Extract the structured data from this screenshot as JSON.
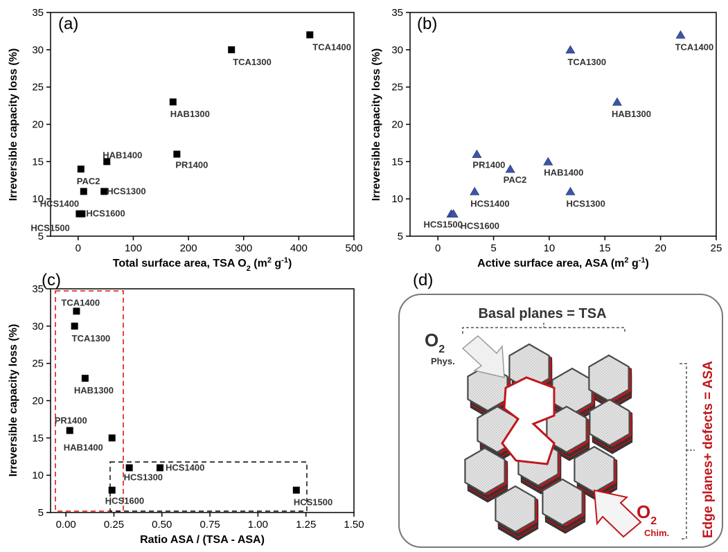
{
  "chart_data": [
    {
      "panel": "(a)",
      "type": "scatter",
      "xlabel": "Total surface area, TSA O",
      "xlabel_sub": "2",
      "xlabel_unit_pre": " (m",
      "xlabel_sup": "2",
      "xlabel_unit_post": " g",
      "xlabel_sup2": "-1",
      "xlabel_close": ")",
      "ylabel": "Irreversible capacity loss (%)",
      "xlim": [
        -50,
        500
      ],
      "ylim": [
        5,
        35
      ],
      "xticks": [
        0,
        100,
        200,
        300,
        400,
        500
      ],
      "yticks": [
        5,
        10,
        15,
        20,
        25,
        30,
        35
      ],
      "marker": "square",
      "color": "#000000",
      "points": [
        {
          "label": "TCA1400",
          "x": 420,
          "y": 32
        },
        {
          "label": "TCA1300",
          "x": 278,
          "y": 30
        },
        {
          "label": "HAB1300",
          "x": 172,
          "y": 23
        },
        {
          "label": "PR1400",
          "x": 179,
          "y": 16
        },
        {
          "label": "HAB1400",
          "x": 52,
          "y": 15
        },
        {
          "label": "PAC2",
          "x": 5,
          "y": 14
        },
        {
          "label": "HCS1300",
          "x": 47,
          "y": 11
        },
        {
          "label": "HCS1400",
          "x": 10,
          "y": 11
        },
        {
          "label": "HCS1600",
          "x": 7,
          "y": 8
        },
        {
          "label": "HCS1500",
          "x": 2,
          "y": 8
        }
      ]
    },
    {
      "panel": "(b)",
      "type": "scatter",
      "xlabel": "Active surface area, ASA (m",
      "xlabel_sup": "2",
      "xlabel_unit_post": " g",
      "xlabel_sup2": "-1",
      "xlabel_close": ")",
      "ylabel": "Irreversible capacity loss (%)",
      "xlim": [
        -2.5,
        25
      ],
      "ylim": [
        5,
        35
      ],
      "xticks": [
        0,
        5,
        10,
        15,
        20,
        25
      ],
      "yticks": [
        5,
        10,
        15,
        20,
        25,
        30,
        35
      ],
      "marker": "triangle",
      "color": "#3d54a8",
      "points": [
        {
          "label": "TCA1400",
          "x": 21.8,
          "y": 32
        },
        {
          "label": "TCA1300",
          "x": 11.9,
          "y": 30
        },
        {
          "label": "HAB1300",
          "x": 16.1,
          "y": 23
        },
        {
          "label": "PR1400",
          "x": 3.5,
          "y": 16
        },
        {
          "label": "PAC2",
          "x": 6.5,
          "y": 14
        },
        {
          "label": "HAB1400",
          "x": 9.9,
          "y": 15
        },
        {
          "label": "HCS1400",
          "x": 3.3,
          "y": 11
        },
        {
          "label": "HCS1300",
          "x": 11.9,
          "y": 11
        },
        {
          "label": "HCS1500",
          "x": 1.2,
          "y": 8
        },
        {
          "label": "HCS1600",
          "x": 1.4,
          "y": 8
        }
      ]
    },
    {
      "panel": "(c)",
      "type": "scatter",
      "xlabel": "Ratio ASA / (TSA - ASA)",
      "ylabel": "Irreversible capacity loss (%)",
      "xlim": [
        -0.08,
        1.5
      ],
      "ylim": [
        5,
        35
      ],
      "xticks": [
        0.0,
        0.25,
        0.5,
        0.75,
        1.0,
        1.25,
        1.5
      ],
      "xtick_labels": [
        "0.00",
        "0.25",
        "0.50",
        "0.75",
        "1.00",
        "1.25",
        "1.50"
      ],
      "yticks": [
        5,
        10,
        15,
        20,
        25,
        30,
        35
      ],
      "marker": "square",
      "color": "#000000",
      "points": [
        {
          "label": "TCA1400",
          "x": 0.055,
          "y": 32
        },
        {
          "label": "TCA1300",
          "x": 0.045,
          "y": 30
        },
        {
          "label": "HAB1300",
          "x": 0.1,
          "y": 23
        },
        {
          "label": "PR1400",
          "x": 0.02,
          "y": 16
        },
        {
          "label": "HAB1400",
          "x": 0.24,
          "y": 15
        },
        {
          "label": "HCS1300",
          "x": 0.33,
          "y": 11
        },
        {
          "label": "HCS1400",
          "x": 0.49,
          "y": 11
        },
        {
          "label": "HCS1600",
          "x": 0.24,
          "y": 8
        },
        {
          "label": "HCS1500",
          "x": 1.2,
          "y": 8
        }
      ]
    }
  ],
  "diagram": {
    "panel": "(d)",
    "basal_label": "Basal planes = TSA",
    "edge_label": "Edge planes+ defects = ASA",
    "o2_phys_main": "O",
    "o2_phys_sub": "2",
    "o2_phys_note": "Phys.",
    "o2_chim_main": "O",
    "o2_chim_sub": "2",
    "o2_chim_note": "Chim.",
    "colors": {
      "edge": "#c0161b",
      "hexagon": "#dcdcdc",
      "outline": "#555555"
    }
  }
}
